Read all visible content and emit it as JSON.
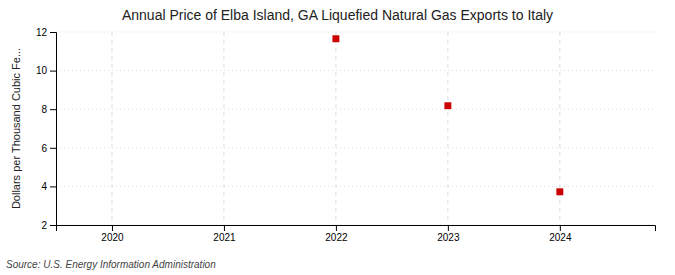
{
  "chart_data": {
    "type": "scatter",
    "title": "Annual Price of Elba Island, GA Liquefied Natural Gas Exports to Italy",
    "ylabel": "Dollars per Thousand Cubic Fe...",
    "source": "Source: U.S. Energy Information Administration",
    "x": [
      2022,
      2023,
      2024
    ],
    "values": [
      11.65,
      8.18,
      3.72
    ],
    "xlim": [
      2019.5,
      2024.85
    ],
    "xticks": [
      2020,
      2021,
      2022,
      2023,
      2024
    ],
    "ylim": [
      2,
      12
    ],
    "yticks": [
      2,
      4,
      6,
      8,
      10,
      12
    ],
    "color": "#cc0000",
    "marker": "square",
    "grid": true
  }
}
